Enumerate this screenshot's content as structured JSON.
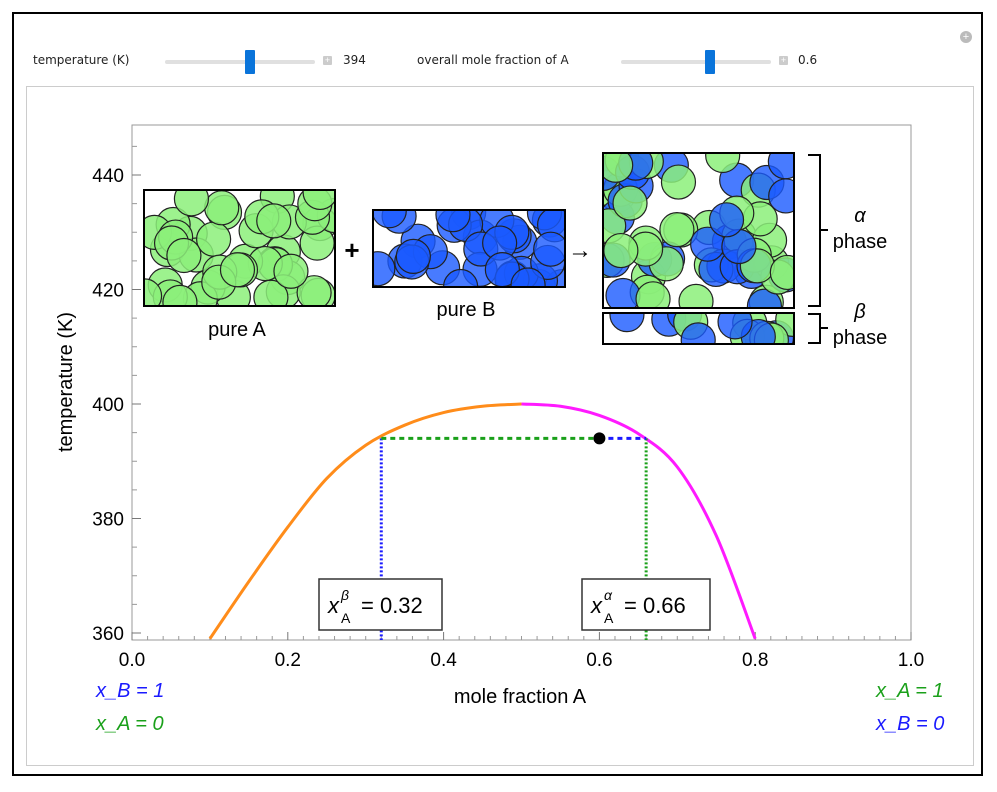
{
  "controls": {
    "temperature_label": "temperature (K)",
    "temperature_value": "394",
    "temperature_fraction": 0.57,
    "molefrac_label": "overall mole fraction of A",
    "molefrac_value": "0.6",
    "molefrac_fraction": 0.6
  },
  "images": {
    "pure_a": "pure A",
    "pure_b": "pure B",
    "plus": "+",
    "arrow": "→",
    "alpha": "α",
    "beta": "β",
    "phase": "phase"
  },
  "bottom_labels": {
    "left1": "x_B = 1",
    "left2": "x_A = 0",
    "right1": "x_A = 1",
    "right2": "x_B = 0"
  },
  "colors": {
    "orange": "#ff8c1a",
    "magenta": "#ff1aff",
    "blue": "#1a1aff",
    "green": "#1aa01a",
    "particleA": "#8cf07a",
    "particleB": "#1a5aff"
  },
  "chart_data": {
    "type": "line",
    "xlabel": "mole fraction A",
    "ylabel": "temperature (K)",
    "xlim": [
      0,
      1
    ],
    "ylim": [
      359,
      449
    ],
    "xticks": [
      "0.0",
      "0.2",
      "0.4",
      "0.6",
      "0.8",
      "1.0"
    ],
    "yticks": [
      "360",
      "380",
      "400",
      "420",
      "440"
    ],
    "series": [
      {
        "name": "beta branch",
        "color": "#ff8c1a",
        "x": [
          0.1,
          0.15,
          0.2,
          0.25,
          0.3,
          0.35,
          0.4,
          0.45,
          0.5
        ],
        "y": [
          359,
          369,
          378.5,
          387,
          392.8,
          396.3,
          398.5,
          399.6,
          400
        ]
      },
      {
        "name": "alpha branch",
        "color": "#ff1aff",
        "x": [
          0.5,
          0.55,
          0.6,
          0.65,
          0.7,
          0.75,
          0.8
        ],
        "y": [
          400,
          399.6,
          398,
          394.8,
          389,
          377,
          359
        ]
      }
    ],
    "tie_line": {
      "T": 394,
      "xbeta": 0.32,
      "xalpha": 0.66
    },
    "point": {
      "x": 0.6,
      "T": 394
    },
    "annotations": {
      "xbeta_label": "= 0.32",
      "xalpha_label": "= 0.66",
      "x_sym": "x",
      "sub": "A",
      "sup_beta": "β",
      "sup_alpha": "α"
    }
  }
}
